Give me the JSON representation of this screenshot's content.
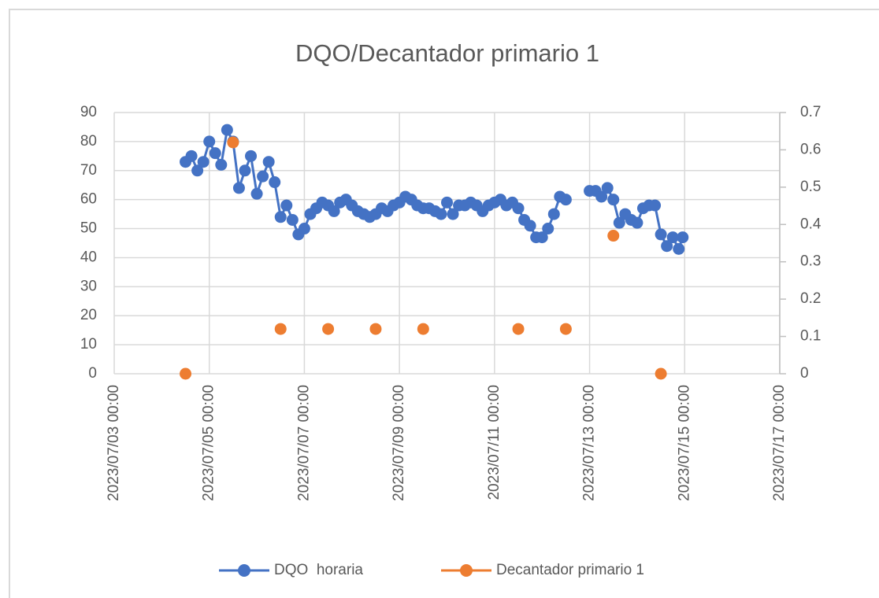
{
  "chart_data": {
    "type": "line",
    "title": "DQO/Decantador primario 1",
    "xlim": [
      "2023/07/03 00:00",
      "2023/07/17 00:00"
    ],
    "xticks": [
      "2023/07/03 00:00",
      "2023/07/05 00:00",
      "2023/07/07 00:00",
      "2023/07/09 00:00",
      "2023/07/11 00:00",
      "2023/07/13 00:00",
      "2023/07/15 00:00",
      "2023/07/17 00:00"
    ],
    "ylim": [
      0,
      90
    ],
    "yticks": [
      0,
      10,
      20,
      30,
      40,
      50,
      60,
      70,
      80,
      90
    ],
    "y2lim": [
      0,
      0.7
    ],
    "y2ticks": [
      0,
      0.1,
      0.2,
      0.3,
      0.4,
      0.5,
      0.6,
      0.7
    ],
    "grid": true,
    "legend": "bottom",
    "series": [
      {
        "name": "DQO  horaria",
        "color": "#4472c4",
        "show_line": true,
        "x": [
          "2023/07/04 12:00",
          "2023/07/04 15:00",
          "2023/07/04 18:00",
          "2023/07/04 21:00",
          "2023/07/05 00:00",
          "2023/07/05 03:00",
          "2023/07/05 06:00",
          "2023/07/05 09:00",
          "2023/07/05 12:00",
          "2023/07/05 15:00",
          "2023/07/05 18:00",
          "2023/07/05 21:00",
          "2023/07/06 00:00",
          "2023/07/06 03:00",
          "2023/07/06 06:00",
          "2023/07/06 09:00",
          "2023/07/06 12:00",
          "2023/07/06 15:00",
          "2023/07/06 18:00",
          "2023/07/06 21:00",
          "2023/07/07 00:00",
          "2023/07/07 03:00",
          "2023/07/07 06:00",
          "2023/07/07 09:00",
          "2023/07/07 12:00",
          "2023/07/07 15:00",
          "2023/07/07 18:00",
          "2023/07/07 21:00",
          "2023/07/08 00:00",
          "2023/07/08 03:00",
          "2023/07/08 06:00",
          "2023/07/08 09:00",
          "2023/07/08 12:00",
          "2023/07/08 15:00",
          "2023/07/08 18:00",
          "2023/07/08 21:00",
          "2023/07/09 00:00",
          "2023/07/09 03:00",
          "2023/07/09 06:00",
          "2023/07/09 09:00",
          "2023/07/09 12:00",
          "2023/07/09 15:00",
          "2023/07/09 18:00",
          "2023/07/09 21:00",
          "2023/07/10 00:00",
          "2023/07/10 03:00",
          "2023/07/10 06:00",
          "2023/07/10 09:00",
          "2023/07/10 12:00",
          "2023/07/10 15:00",
          "2023/07/10 18:00",
          "2023/07/10 21:00",
          "2023/07/11 00:00",
          "2023/07/11 03:00",
          "2023/07/11 06:00",
          "2023/07/11 09:00",
          "2023/07/11 12:00",
          "2023/07/11 15:00",
          "2023/07/11 18:00",
          "2023/07/11 21:00",
          "2023/07/12 00:00",
          "2023/07/12 03:00",
          "2023/07/12 06:00",
          "2023/07/12 09:00",
          "2023/07/12 12:00",
          "2023/07/12 18:00",
          "2023/07/13 00:00",
          "2023/07/13 03:00",
          "2023/07/13 06:00",
          "2023/07/13 09:00",
          "2023/07/13 12:00",
          "2023/07/13 15:00",
          "2023/07/13 18:00",
          "2023/07/13 21:00",
          "2023/07/14 00:00",
          "2023/07/14 03:00",
          "2023/07/14 06:00",
          "2023/07/14 09:00",
          "2023/07/14 12:00",
          "2023/07/14 15:00",
          "2023/07/14 18:00",
          "2023/07/14 21:00",
          "2023/07/14 23:00"
        ],
        "values": [
          73,
          75,
          70,
          73,
          80,
          76,
          72,
          84,
          80,
          64,
          70,
          75,
          62,
          68,
          73,
          66,
          54,
          58,
          53,
          48,
          50,
          55,
          57,
          59,
          58,
          56,
          59,
          60,
          58,
          56,
          55,
          54,
          55,
          57,
          56,
          58,
          59,
          61,
          60,
          58,
          57,
          57,
          56,
          55,
          59,
          55,
          58,
          58,
          59,
          58,
          56,
          58,
          59,
          60,
          58,
          59,
          57,
          53,
          51,
          47,
          47,
          50,
          55,
          61,
          60,
          null,
          63,
          63,
          61,
          64,
          60,
          52,
          55,
          53,
          52,
          57,
          58,
          58,
          48,
          44,
          47,
          43,
          47
        ]
      },
      {
        "name": "Decantador primario 1",
        "color": "#ed7d31",
        "axis": "y2",
        "show_line": false,
        "x": [
          "2023/07/04 12:00",
          "2023/07/05 12:00",
          "2023/07/06 12:00",
          "2023/07/07 12:00",
          "2023/07/08 12:00",
          "2023/07/09 12:00",
          "2023/07/11 12:00",
          "2023/07/12 12:00",
          "2023/07/13 12:00",
          "2023/07/14 12:00"
        ],
        "values": [
          0,
          0.62,
          0.12,
          0.12,
          0.12,
          0.12,
          0.12,
          0.12,
          0.37,
          0
        ]
      }
    ]
  }
}
